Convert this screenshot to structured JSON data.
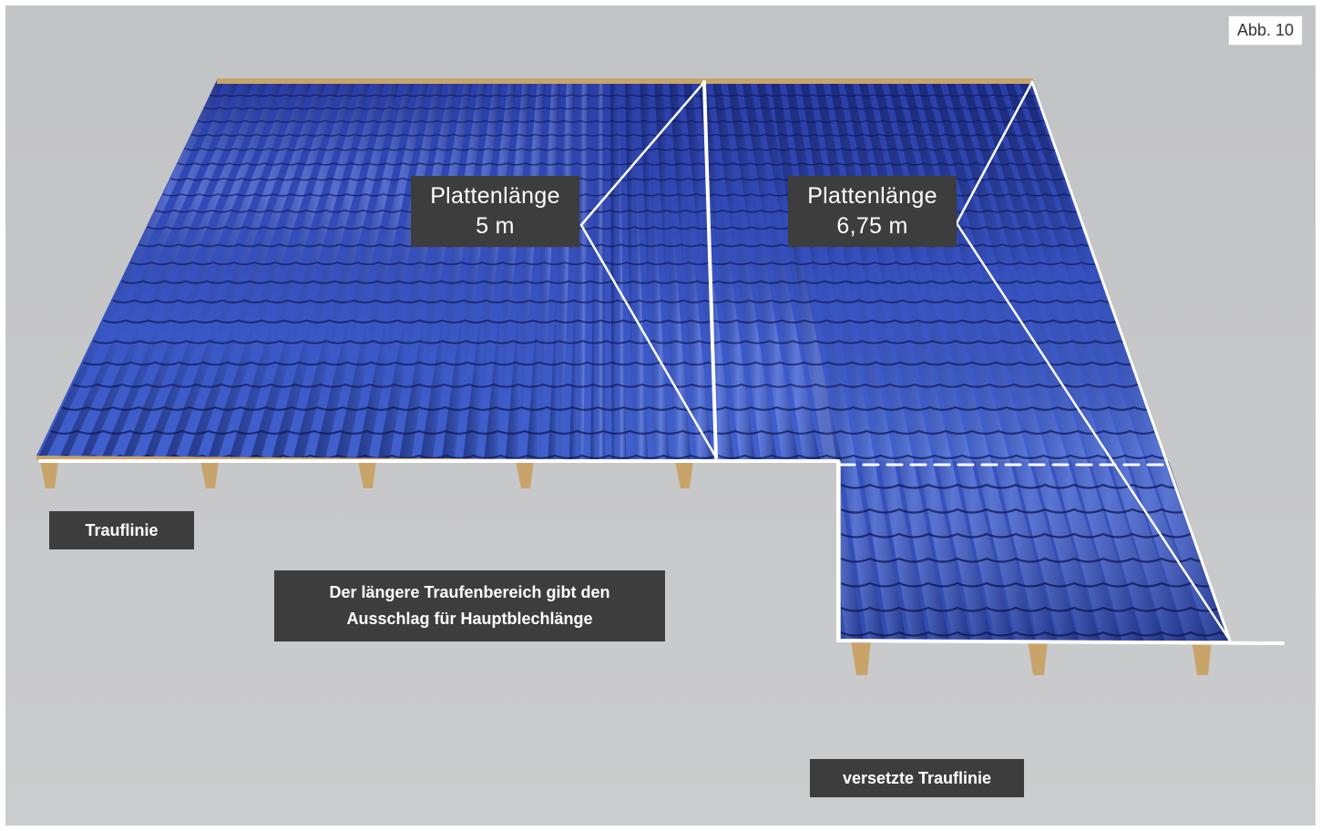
{
  "figure_label": "Abb. 10",
  "colors": {
    "background": "#c6c7c9",
    "roof_light": "#4a6fd8",
    "roof_dark": "#14237a",
    "batten": "#c9a46a",
    "line": "#ffffff",
    "label_bg": "#3d3d3d"
  },
  "labels": {
    "plate_left": {
      "line1": "Plattenlänge",
      "line2": "5 m"
    },
    "plate_right": {
      "line1": "Plattenlänge",
      "line2": "6,75 m"
    },
    "eave": "Trauflinie",
    "note": {
      "line1": "Der längere Traufenbereich gibt den",
      "line2": "Ausschlag für Hauptblechlänge"
    },
    "offset_eave": "versetzte Trauflinie"
  }
}
